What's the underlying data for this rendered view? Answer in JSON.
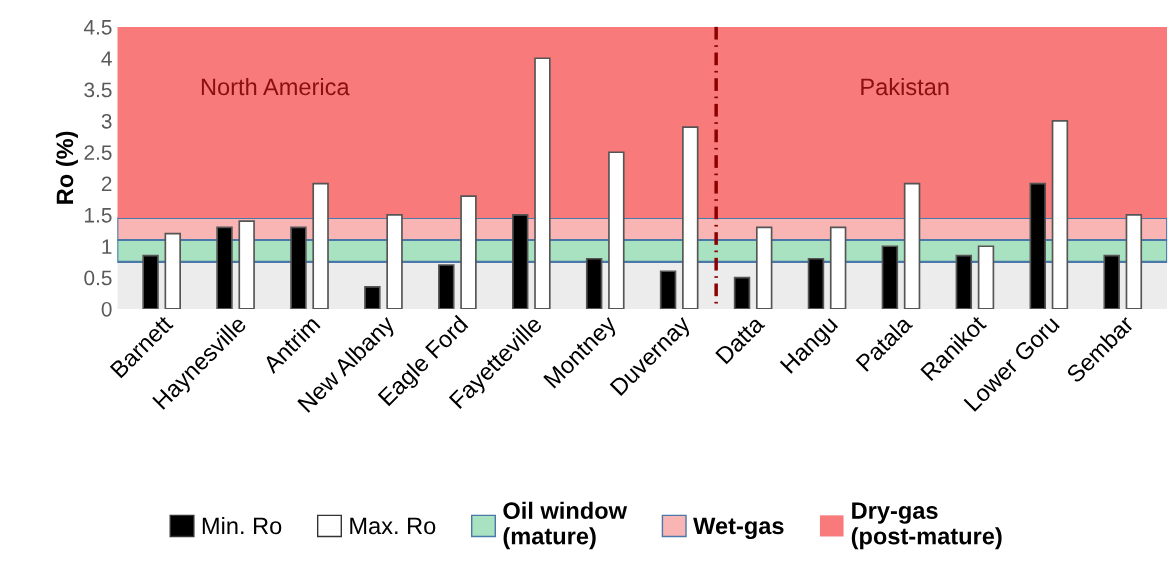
{
  "chart_data": {
    "type": "bar",
    "ylabel": "Ro (%)",
    "categories": [
      "Barnett",
      "Haynesville",
      "Antrim",
      "New Albany",
      "Eagle Ford",
      "Fayetteville",
      "Montney",
      "Duvernay",
      "Datta",
      "Hangu",
      "Patala",
      "Ranikot",
      "Lower Goru",
      "Sembar"
    ],
    "series": [
      {
        "name": "Min. Ro",
        "color": "#000000",
        "values": [
          0.85,
          1.3,
          1.3,
          0.35,
          0.7,
          1.5,
          0.8,
          0.6,
          0.5,
          0.8,
          1.0,
          0.85,
          2.0,
          0.85
        ]
      },
      {
        "name": "Max. Ro",
        "color": "#ffffff",
        "values": [
          1.2,
          1.4,
          2.0,
          1.5,
          1.8,
          4.0,
          2.5,
          2.9,
          1.3,
          1.3,
          2.0,
          1.0,
          3.0,
          1.5
        ]
      }
    ],
    "ylim": [
      0,
      4.5
    ],
    "yticks": [
      0,
      0.5,
      1,
      1.5,
      2,
      2.5,
      3,
      3.5,
      4,
      4.5
    ],
    "bands": [
      {
        "axis": "y",
        "from": 0,
        "to": 0.75,
        "color": "#ececec"
      },
      {
        "axis": "y",
        "from": 0.75,
        "to": 1.1,
        "label": "Oil window\n(mature)",
        "color": "#a8e2c0"
      },
      {
        "axis": "y",
        "from": 1.1,
        "to": 1.45,
        "label": "Wet-gas",
        "color": "#f9b4b4"
      },
      {
        "axis": "y",
        "from": 1.45,
        "to": 4.5,
        "label": "Dry-gas\n(post-mature)",
        "color": "#f87a7a"
      }
    ],
    "annotations": [
      "North America",
      "Pakistan"
    ],
    "legend": "bottom",
    "grid": false
  }
}
